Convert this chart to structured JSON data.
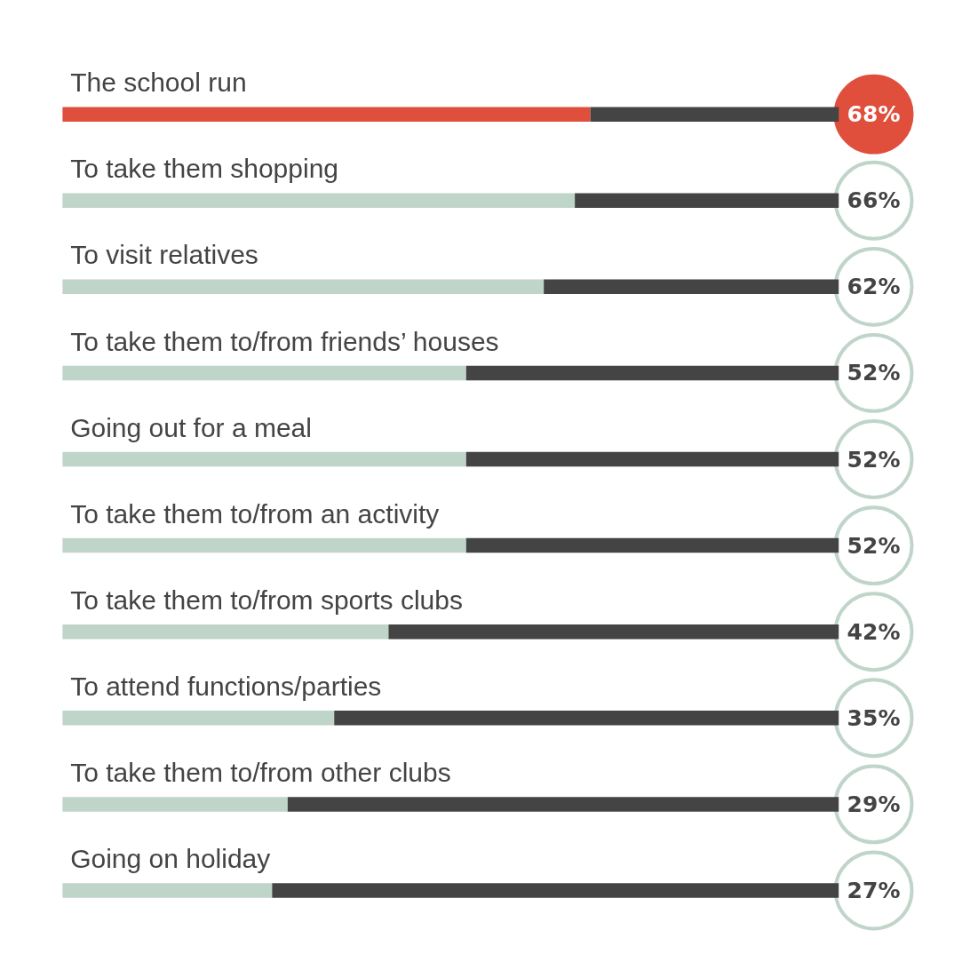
{
  "chart_data": {
    "type": "bar",
    "orientation": "horizontal",
    "stacked": true,
    "categories": [
      "The school run",
      "To take them shopping",
      "To visit relatives",
      "To take them to/from friends’ houses",
      "Going out for a meal",
      "To take them to/from an activity",
      "To take them to/from sports clubs",
      "To attend functions/parties",
      "To take them to/from other clubs",
      "Going on holiday"
    ],
    "series": [
      {
        "values": [
          68,
          66,
          62,
          52,
          52,
          52,
          42,
          35,
          29,
          27
        ],
        "colors": [
          "#e04e3c",
          "#c0d5c9",
          "#c0d5c9",
          "#c0d5c9",
          "#c0d5c9",
          "#c0d5c9",
          "#c0d5c9",
          "#c0d5c9",
          "#c0d5c9",
          "#c0d5c9"
        ],
        "value_labels": [
          "68%",
          "66%",
          "62%",
          "52%",
          "52%",
          "52%",
          "42%",
          "35%",
          "29%",
          "27%"
        ]
      },
      {
        "values": [
          32,
          34,
          38,
          48,
          48,
          48,
          58,
          65,
          71,
          73
        ],
        "color": "#444444"
      }
    ],
    "xlim": [
      0,
      100
    ],
    "tick_labels": false,
    "grid": false
  }
}
